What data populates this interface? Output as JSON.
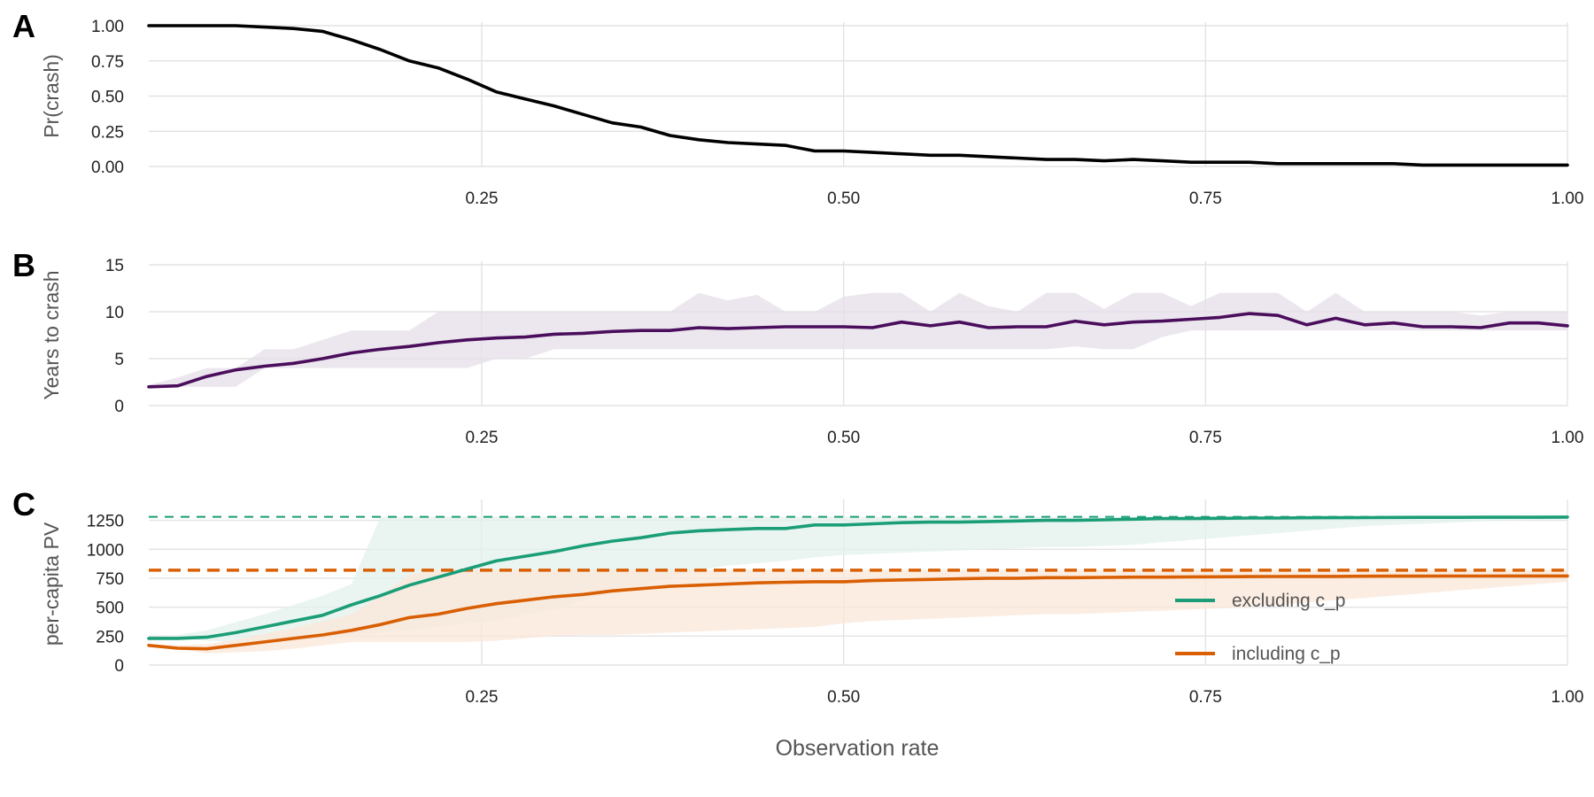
{
  "figure": {
    "xlabel": "Observation rate"
  },
  "chart_data": [
    {
      "panel": "A",
      "type": "line",
      "ylabel": "Pr(crash)",
      "xlim": [
        0.02,
        1.0
      ],
      "ylim": [
        0,
        1
      ],
      "x_ticks": [
        "0.25",
        "0.50",
        "0.75",
        "1.00"
      ],
      "y_ticks": [
        "0.00",
        "0.25",
        "0.50",
        "0.75",
        "1.00"
      ],
      "grid": true,
      "series": [
        {
          "color": "#000000",
          "x": [
            0.02,
            0.04,
            0.06,
            0.08,
            0.1,
            0.12,
            0.14,
            0.16,
            0.18,
            0.2,
            0.22,
            0.24,
            0.26,
            0.28,
            0.3,
            0.32,
            0.34,
            0.36,
            0.38,
            0.4,
            0.42,
            0.44,
            0.46,
            0.48,
            0.5,
            0.52,
            0.54,
            0.56,
            0.58,
            0.6,
            0.62,
            0.64,
            0.66,
            0.68,
            0.7,
            0.72,
            0.74,
            0.76,
            0.78,
            0.8,
            0.82,
            0.84,
            0.86,
            0.88,
            0.9,
            0.92,
            0.94,
            0.96,
            0.98,
            1.0
          ],
          "y": [
            1.0,
            1.0,
            1.0,
            1.0,
            0.99,
            0.98,
            0.96,
            0.9,
            0.83,
            0.75,
            0.7,
            0.62,
            0.53,
            0.48,
            0.43,
            0.37,
            0.31,
            0.28,
            0.22,
            0.19,
            0.17,
            0.16,
            0.15,
            0.11,
            0.11,
            0.1,
            0.09,
            0.08,
            0.08,
            0.07,
            0.06,
            0.05,
            0.05,
            0.04,
            0.05,
            0.04,
            0.03,
            0.03,
            0.03,
            0.02,
            0.02,
            0.02,
            0.02,
            0.02,
            0.01,
            0.01,
            0.01,
            0.01,
            0.01,
            0.01
          ]
        }
      ]
    },
    {
      "panel": "B",
      "type": "line",
      "ylabel": "Years to crash",
      "xlim": [
        0.02,
        1.0
      ],
      "ylim": [
        0,
        15
      ],
      "x_ticks": [
        "0.25",
        "0.50",
        "0.75",
        "1.00"
      ],
      "y_ticks": [
        "0",
        "5",
        "10",
        "15"
      ],
      "grid": true,
      "series": [
        {
          "color": "#4a0e5c",
          "band_color": "#e6dfea",
          "x": [
            0.02,
            0.04,
            0.06,
            0.08,
            0.1,
            0.12,
            0.14,
            0.16,
            0.18,
            0.2,
            0.22,
            0.24,
            0.26,
            0.28,
            0.3,
            0.32,
            0.34,
            0.36,
            0.38,
            0.4,
            0.42,
            0.44,
            0.46,
            0.48,
            0.5,
            0.52,
            0.54,
            0.56,
            0.58,
            0.6,
            0.62,
            0.64,
            0.66,
            0.68,
            0.7,
            0.72,
            0.74,
            0.76,
            0.78,
            0.8,
            0.82,
            0.84,
            0.86,
            0.88,
            0.9,
            0.92,
            0.94,
            0.96,
            0.98,
            1.0
          ],
          "y": [
            2.0,
            2.1,
            3.1,
            3.8,
            4.2,
            4.5,
            5.0,
            5.6,
            6.0,
            6.3,
            6.7,
            7.0,
            7.2,
            7.3,
            7.6,
            7.7,
            7.9,
            8.0,
            8.0,
            8.3,
            8.2,
            8.3,
            8.4,
            8.4,
            8.4,
            8.3,
            8.9,
            8.5,
            8.9,
            8.3,
            8.4,
            8.4,
            9.0,
            8.6,
            8.9,
            9.0,
            9.2,
            9.4,
            9.8,
            9.6,
            8.6,
            9.3,
            8.6,
            8.8,
            8.4,
            8.4,
            8.3,
            8.8,
            8.8,
            8.5
          ],
          "lower": [
            2.0,
            2.0,
            2.0,
            2.0,
            4.0,
            4.0,
            4.0,
            4.0,
            4.0,
            4.0,
            4.0,
            4.0,
            5.0,
            5.0,
            6.0,
            6.0,
            6.0,
            6.0,
            6.0,
            6.0,
            6.0,
            6.0,
            6.0,
            6.0,
            6.0,
            6.0,
            6.0,
            6.0,
            6.0,
            6.0,
            6.0,
            6.0,
            6.3,
            6.0,
            6.0,
            7.3,
            8.0,
            8.0,
            8.0,
            8.0,
            8.0,
            8.0,
            8.0,
            8.0,
            8.0,
            8.0,
            8.0,
            8.0,
            8.0,
            8.0
          ],
          "upper": [
            2.2,
            3.0,
            4.0,
            4.0,
            6.0,
            6.0,
            7.0,
            8.0,
            8.0,
            8.0,
            10.0,
            10.0,
            10.0,
            10.0,
            10.0,
            10.0,
            10.0,
            10.0,
            10.0,
            12.0,
            11.2,
            11.8,
            10.0,
            10.0,
            11.6,
            12.0,
            12.0,
            10.0,
            12.0,
            10.6,
            10.0,
            12.0,
            12.0,
            10.3,
            12.0,
            12.0,
            10.6,
            12.0,
            12.0,
            12.0,
            10.0,
            12.0,
            10.0,
            10.0,
            10.0,
            10.0,
            9.6,
            10.0,
            10.0,
            10.0
          ]
        }
      ]
    },
    {
      "panel": "C",
      "type": "line",
      "ylabel": "per-capita PV",
      "xlim": [
        0.02,
        1.0
      ],
      "ylim": [
        0,
        1400
      ],
      "x_ticks": [
        "0.25",
        "0.50",
        "0.75",
        "1.00"
      ],
      "y_ticks": [
        "0",
        "250",
        "500",
        "750",
        "1000",
        "1250"
      ],
      "grid": true,
      "legend_position": "bottom-right",
      "reference_lines": [
        {
          "y": 1280,
          "color": "#1b9e77"
        },
        {
          "y": 820,
          "color": "#d95f02"
        }
      ],
      "series": [
        {
          "name": "excluding c_p",
          "color": "#1b9e77",
          "band_color": "#e3f2ec",
          "x": [
            0.02,
            0.04,
            0.06,
            0.08,
            0.1,
            0.12,
            0.14,
            0.16,
            0.18,
            0.2,
            0.22,
            0.24,
            0.26,
            0.28,
            0.3,
            0.32,
            0.34,
            0.36,
            0.38,
            0.4,
            0.42,
            0.44,
            0.46,
            0.48,
            0.5,
            0.52,
            0.54,
            0.56,
            0.58,
            0.6,
            0.62,
            0.64,
            0.66,
            0.68,
            0.7,
            0.72,
            0.74,
            0.76,
            0.78,
            0.8,
            0.82,
            0.84,
            0.86,
            0.88,
            0.9,
            0.92,
            0.94,
            0.96,
            0.98,
            1.0
          ],
          "y": [
            230,
            230,
            240,
            280,
            330,
            380,
            430,
            520,
            600,
            690,
            760,
            830,
            900,
            940,
            980,
            1030,
            1070,
            1100,
            1140,
            1160,
            1170,
            1180,
            1180,
            1210,
            1210,
            1220,
            1230,
            1235,
            1235,
            1240,
            1245,
            1250,
            1250,
            1255,
            1260,
            1265,
            1265,
            1268,
            1270,
            1270,
            1272,
            1273,
            1274,
            1275,
            1276,
            1276,
            1277,
            1277,
            1277,
            1278
          ],
          "lower": [
            230,
            230,
            210,
            200,
            200,
            210,
            230,
            260,
            280,
            300,
            330,
            360,
            380,
            430,
            480,
            560,
            620,
            680,
            760,
            820,
            860,
            880,
            900,
            930,
            950,
            960,
            970,
            980,
            990,
            1000,
            1010,
            1020,
            1020,
            1030,
            1040,
            1060,
            1080,
            1100,
            1120,
            1140,
            1160,
            1180,
            1200,
            1210,
            1220,
            1230,
            1240,
            1250,
            1255,
            1260
          ],
          "upper": [
            240,
            260,
            300,
            370,
            440,
            520,
            600,
            700,
            1280,
            1280,
            1280,
            1280,
            1280,
            1280,
            1280,
            1280,
            1280,
            1280,
            1280,
            1280,
            1280,
            1280,
            1280,
            1280,
            1280,
            1280,
            1280,
            1280,
            1280,
            1280,
            1280,
            1280,
            1280,
            1280,
            1280,
            1280,
            1280,
            1280,
            1280,
            1280,
            1280,
            1280,
            1280,
            1280,
            1280,
            1280,
            1280,
            1280,
            1280,
            1280
          ]
        },
        {
          "name": "including c_p",
          "color": "#d95f02",
          "band_color": "#fbe7d9",
          "x": [
            0.02,
            0.04,
            0.06,
            0.08,
            0.1,
            0.12,
            0.14,
            0.16,
            0.18,
            0.2,
            0.22,
            0.24,
            0.26,
            0.28,
            0.3,
            0.32,
            0.34,
            0.36,
            0.38,
            0.4,
            0.42,
            0.44,
            0.46,
            0.48,
            0.5,
            0.52,
            0.54,
            0.56,
            0.58,
            0.6,
            0.62,
            0.64,
            0.66,
            0.68,
            0.7,
            0.72,
            0.74,
            0.76,
            0.78,
            0.8,
            0.82,
            0.84,
            0.86,
            0.88,
            0.9,
            0.92,
            0.94,
            0.96,
            0.98,
            1.0
          ],
          "y": [
            170,
            145,
            140,
            170,
            200,
            230,
            260,
            300,
            350,
            410,
            440,
            490,
            530,
            560,
            590,
            610,
            640,
            660,
            680,
            690,
            700,
            710,
            715,
            720,
            720,
            730,
            735,
            740,
            745,
            750,
            750,
            755,
            755,
            757,
            760,
            760,
            762,
            763,
            764,
            765,
            766,
            766,
            767,
            768,
            768,
            769,
            769,
            770,
            770,
            770
          ],
          "lower": [
            160,
            140,
            100,
            110,
            120,
            140,
            170,
            200,
            200,
            200,
            200,
            200,
            210,
            230,
            250,
            260,
            260,
            270,
            280,
            290,
            300,
            310,
            320,
            330,
            360,
            380,
            390,
            400,
            410,
            420,
            430,
            440,
            440,
            450,
            460,
            470,
            480,
            490,
            500,
            520,
            540,
            560,
            580,
            600,
            620,
            640,
            660,
            680,
            700,
            720
          ],
          "upper": [
            180,
            170,
            180,
            220,
            270,
            320,
            380,
            440,
            600,
            780,
            820,
            820,
            820,
            820,
            820,
            820,
            820,
            820,
            820,
            820,
            820,
            820,
            820,
            820,
            820,
            820,
            820,
            820,
            820,
            820,
            820,
            820,
            820,
            820,
            820,
            820,
            820,
            820,
            820,
            820,
            820,
            820,
            820,
            820,
            820,
            820,
            820,
            820,
            820,
            820
          ]
        }
      ]
    }
  ]
}
